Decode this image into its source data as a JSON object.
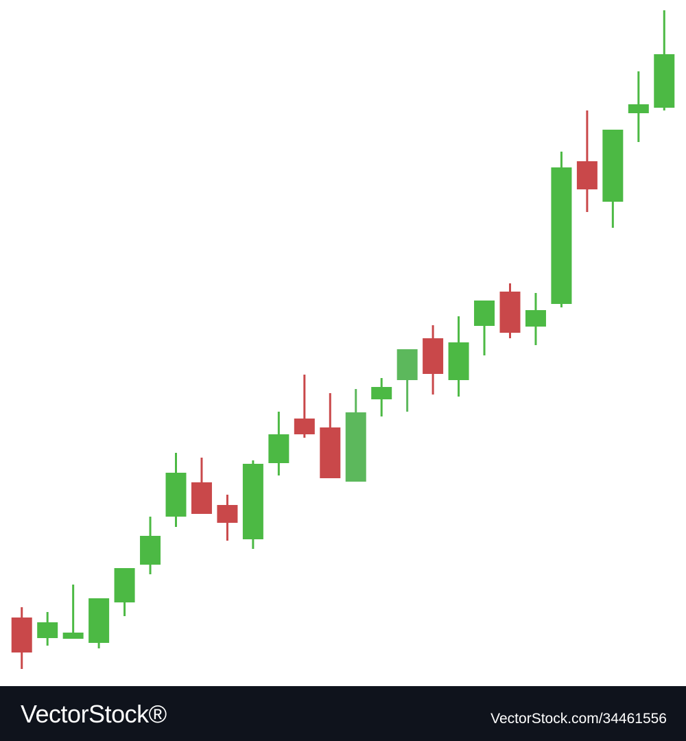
{
  "chart_data": {
    "type": "candlestick",
    "open": [
      100,
      70,
      69,
      63,
      122,
      177,
      247,
      297,
      264,
      214,
      325,
      390,
      377,
      298,
      418,
      446,
      507,
      446,
      525,
      575,
      524,
      557,
      765,
      706,
      835,
      843
    ],
    "high": [
      115,
      108,
      148,
      128,
      172,
      247,
      340,
      333,
      279,
      329,
      400,
      454,
      427,
      433,
      449,
      491,
      526,
      539,
      562,
      587,
      573,
      779,
      839,
      811,
      896,
      985
    ],
    "low": [
      25,
      59,
      69,
      55,
      102,
      163,
      232,
      251,
      212,
      200,
      307,
      362,
      303,
      298,
      393,
      400,
      425,
      422,
      482,
      507,
      497,
      552,
      691,
      668,
      793,
      839
    ],
    "close": [
      49,
      93,
      78,
      128,
      172,
      219,
      311,
      251,
      238,
      324,
      367,
      367,
      303,
      399,
      436,
      491,
      455,
      501,
      562,
      515,
      548,
      756,
      724,
      811,
      848,
      921
    ],
    "colors": [
      "#c9484a",
      "#4cb944",
      "#4cb944",
      "#4cb944",
      "#4cb944",
      "#4cb944",
      "#4cb944",
      "#c9484a",
      "#c9484a",
      "#4cb944",
      "#4cb944",
      "#c9484a",
      "#c9484a",
      "#5cb85c",
      "#4cb944",
      "#5cb85c",
      "#c9484a",
      "#4cb944",
      "#4cb944",
      "#c9484a",
      "#4cb944",
      "#4cb944",
      "#c9484a",
      "#4cb944",
      "#4cb944",
      "#4cb944"
    ],
    "ylim": [
      0,
      1000
    ]
  },
  "footer": {
    "brand": "VectorStock®",
    "url": "VectorStock.com/34461556"
  }
}
